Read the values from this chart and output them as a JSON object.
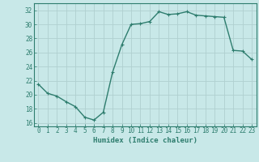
{
  "x": [
    0,
    1,
    2,
    3,
    4,
    5,
    6,
    7,
    8,
    9,
    10,
    11,
    12,
    13,
    14,
    15,
    16,
    17,
    18,
    19,
    20,
    21,
    22,
    23
  ],
  "y": [
    21.5,
    20.2,
    19.8,
    19.0,
    18.3,
    16.8,
    16.4,
    17.5,
    23.2,
    27.1,
    30.0,
    30.1,
    30.4,
    31.8,
    31.4,
    31.5,
    31.8,
    31.3,
    31.2,
    31.1,
    31.0,
    26.3,
    26.2,
    25.0
  ],
  "line_color": "#2e7d6e",
  "marker": "P",
  "bg_color": "#c8e8e8",
  "grid_color": "#b0d0d0",
  "xlabel": "Humidex (Indice chaleur)",
  "ylim": [
    15.5,
    33
  ],
  "xlim": [
    -0.5,
    23.5
  ],
  "yticks": [
    16,
    18,
    20,
    22,
    24,
    26,
    28,
    30,
    32
  ],
  "xticks": [
    0,
    1,
    2,
    3,
    4,
    5,
    6,
    7,
    8,
    9,
    10,
    11,
    12,
    13,
    14,
    15,
    16,
    17,
    18,
    19,
    20,
    21,
    22,
    23
  ],
  "xlabel_fontsize": 6.5,
  "tick_fontsize": 5.5,
  "linewidth": 1.0,
  "markersize": 3.0,
  "tick_color": "#2e7d6e",
  "label_color": "#2e7d6e"
}
